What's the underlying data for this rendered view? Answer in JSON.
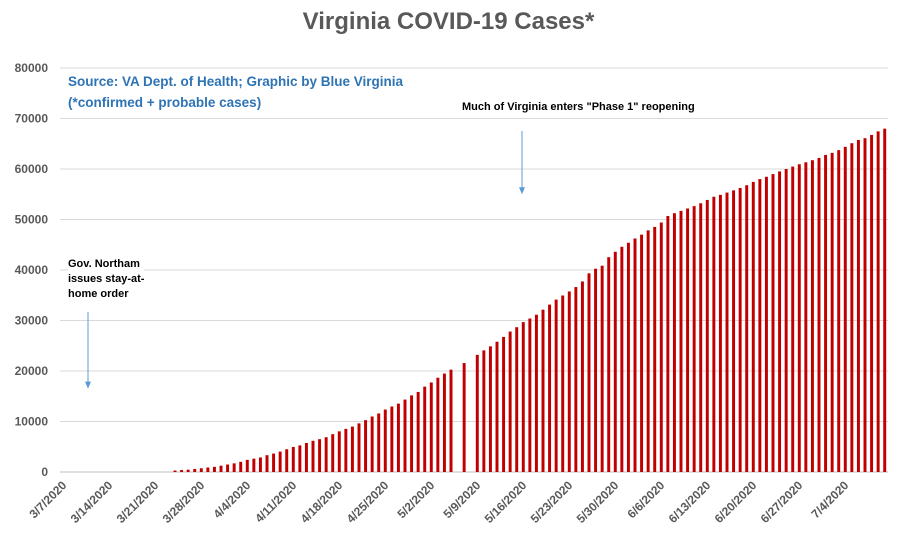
{
  "chart_data": {
    "type": "bar",
    "title": "Virginia COVID-19 Cases*",
    "xlabel": "",
    "ylabel": "",
    "ylim": [
      0,
      80000
    ],
    "yticks": [
      0,
      10000,
      20000,
      30000,
      40000,
      50000,
      60000,
      70000,
      80000
    ],
    "xticks": [
      "3/7/2020",
      "3/14/2020",
      "3/21/2020",
      "3/28/2020",
      "4/4/2020",
      "4/11/2020",
      "4/18/2020",
      "4/25/2020",
      "5/2/2020",
      "5/9/2020",
      "5/16/2020",
      "5/23/2020",
      "5/30/2020",
      "6/6/2020",
      "6/13/2020",
      "6/20/2020",
      "6/27/2020",
      "7/4/2020"
    ],
    "start_date": "3/7/2020",
    "dates": [
      "3/7/2020",
      "3/8/2020",
      "3/9/2020",
      "3/10/2020",
      "3/11/2020",
      "3/12/2020",
      "3/13/2020",
      "3/14/2020",
      "3/15/2020",
      "3/16/2020",
      "3/17/2020",
      "3/18/2020",
      "3/19/2020",
      "3/20/2020",
      "3/21/2020",
      "3/22/2020",
      "3/23/2020",
      "3/24/2020",
      "3/25/2020",
      "3/26/2020",
      "3/27/2020",
      "3/28/2020",
      "3/29/2020",
      "3/30/2020",
      "3/31/2020",
      "4/1/2020",
      "4/2/2020",
      "4/3/2020",
      "4/4/2020",
      "4/5/2020",
      "4/6/2020",
      "4/7/2020",
      "4/8/2020",
      "4/9/2020",
      "4/10/2020",
      "4/11/2020",
      "4/12/2020",
      "4/13/2020",
      "4/14/2020",
      "4/15/2020",
      "4/16/2020",
      "4/17/2020",
      "4/18/2020",
      "4/19/2020",
      "4/20/2020",
      "4/21/2020",
      "4/22/2020",
      "4/23/2020",
      "4/24/2020",
      "4/25/2020",
      "4/26/2020",
      "4/27/2020",
      "4/28/2020",
      "4/29/2020",
      "4/30/2020",
      "5/1/2020",
      "5/2/2020",
      "5/3/2020",
      "5/4/2020",
      "5/5/2020",
      "5/6/2020",
      "5/7/2020",
      "5/8/2020",
      "5/9/2020",
      "5/10/2020",
      "5/11/2020",
      "5/12/2020",
      "5/13/2020",
      "5/14/2020",
      "5/15/2020",
      "5/16/2020",
      "5/17/2020",
      "5/18/2020",
      "5/19/2020",
      "5/20/2020",
      "5/21/2020",
      "5/22/2020",
      "5/23/2020",
      "5/24/2020",
      "5/25/2020",
      "5/26/2020",
      "5/27/2020",
      "5/28/2020",
      "5/29/2020",
      "5/30/2020",
      "5/31/2020",
      "6/1/2020",
      "6/2/2020",
      "6/3/2020",
      "6/4/2020",
      "6/5/2020",
      "6/6/2020",
      "6/7/2020",
      "6/8/2020",
      "6/9/2020",
      "6/10/2020",
      "6/11/2020",
      "6/12/2020",
      "6/13/2020",
      "6/14/2020",
      "6/15/2020",
      "6/16/2020",
      "6/17/2020",
      "6/18/2020",
      "6/19/2020",
      "6/20/2020",
      "6/21/2020",
      "6/22/2020",
      "6/23/2020",
      "6/24/2020",
      "6/25/2020",
      "6/26/2020",
      "6/27/2020",
      "6/28/2020",
      "6/29/2020",
      "6/30/2020",
      "7/1/2020",
      "7/2/2020",
      "7/3/2020",
      "7/4/2020",
      "7/5/2020",
      "7/6/2020",
      "7/7/2020",
      "7/8/2020",
      "7/9/2020",
      "7/10/2020"
    ],
    "values": [
      0,
      0,
      0,
      0,
      0,
      0,
      0,
      0,
      0,
      0,
      0,
      0,
      0,
      0,
      0,
      0,
      0,
      290,
      390,
      460,
      600,
      740,
      890,
      1020,
      1250,
      1480,
      1710,
      2010,
      2400,
      2640,
      2880,
      3330,
      3650,
      4040,
      4510,
      4960,
      5270,
      5750,
      6180,
      6500,
      6890,
      7490,
      8050,
      8540,
      8990,
      9630,
      10270,
      10990,
      11590,
      12370,
      12970,
      13540,
      14340,
      15170,
      15850,
      16900,
      17730,
      18670,
      19490,
      20260,
      0,
      21570,
      0,
      23200,
      24080,
      24880,
      25800,
      26750,
      27810,
      28670,
      29680,
      30390,
      31140,
      32150,
      33150,
      34140,
      34950,
      35750,
      36620,
      37730,
      39340,
      40250,
      40850,
      42530,
      43610,
      44600,
      45400,
      46240,
      47000,
      47850,
      48530,
      49400,
      50700,
      51250,
      51710,
      52180,
      52650,
      53210,
      53870,
      54510,
      54880,
      55330,
      55770,
      56240,
      56790,
      57440,
      58000,
      58460,
      58990,
      59520,
      60000,
      60480,
      60940,
      61330,
      61740,
      62190,
      62790,
      63200,
      63730,
      64390,
      65110,
      65750,
      66100,
      66740,
      67450,
      67990
    ],
    "bar_color": "#c00000",
    "grid": true,
    "annotations": [
      {
        "id": "source",
        "text_lines": [
          "Source: VA Dept. of Health; Graphic by Blue Virginia",
          "(*confirmed + probable cases)"
        ]
      },
      {
        "id": "stay-home",
        "text_lines": [
          "Gov. Northam",
          "issues stay-at-",
          "home order"
        ],
        "arrow_date": "3/30/2020",
        "arrow_value": 16500
      },
      {
        "id": "phase1",
        "text_lines": [
          "Much of Virginia enters \"Phase 1\" reopening"
        ],
        "arrow_date": "5/15/2020",
        "arrow_value": 55000
      }
    ]
  }
}
